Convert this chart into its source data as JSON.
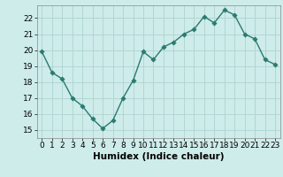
{
  "x": [
    0,
    1,
    2,
    3,
    4,
    5,
    6,
    7,
    8,
    9,
    10,
    11,
    12,
    13,
    14,
    15,
    16,
    17,
    18,
    19,
    20,
    21,
    22,
    23
  ],
  "y": [
    19.9,
    18.6,
    18.2,
    17.0,
    16.5,
    15.7,
    15.1,
    15.6,
    17.0,
    18.1,
    19.9,
    19.4,
    20.2,
    20.5,
    21.0,
    21.3,
    22.1,
    21.7,
    22.5,
    22.2,
    21.0,
    20.7,
    19.4,
    19.1
  ],
  "line_color": "#2a7a70",
  "marker_color": "#2a7a70",
  "bg_color": "#ceecea",
  "grid_color": "#aed4d0",
  "xlabel": "Humidex (Indice chaleur)",
  "ylim": [
    14.5,
    22.8
  ],
  "xlim": [
    -0.5,
    23.5
  ],
  "yticks": [
    15,
    16,
    17,
    18,
    19,
    20,
    21,
    22
  ],
  "xticks": [
    0,
    1,
    2,
    3,
    4,
    5,
    6,
    7,
    8,
    9,
    10,
    11,
    12,
    13,
    14,
    15,
    16,
    17,
    18,
    19,
    20,
    21,
    22,
    23
  ],
  "font_color": "#000000",
  "axis_color": "#888888",
  "tick_color": "#000000",
  "xlabel_fontsize": 7.5,
  "tick_fontsize": 6.5,
  "linewidth": 1.0,
  "markersize": 2.8
}
